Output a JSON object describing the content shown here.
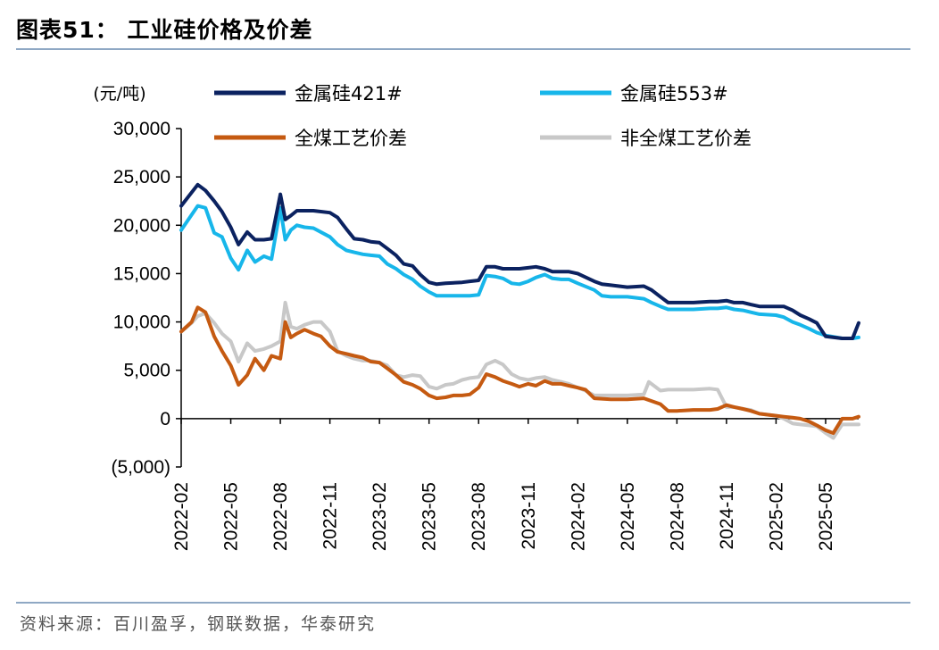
{
  "header": {
    "title": "图表51：  工业硅价格及价差"
  },
  "footer": {
    "source": "资料来源：百川盈孚，钢联数据，华泰研究"
  },
  "chart_data": {
    "type": "line",
    "ylabel": "(元/吨)",
    "ylim": [
      -5000,
      30000
    ],
    "yticks": [
      -5000,
      0,
      5000,
      10000,
      15000,
      20000,
      25000,
      30000
    ],
    "ytick_labels": [
      "(5,000)",
      "0",
      "5,000",
      "10,000",
      "15,000",
      "20,000",
      "25,000",
      "30,000"
    ],
    "x_range": [
      "2022-02",
      "2025-07"
    ],
    "xtick_labels": [
      "2022-02",
      "2022-05",
      "2022-08",
      "2022-11",
      "2023-02",
      "2023-05",
      "2023-08",
      "2023-11",
      "2024-02",
      "2024-05",
      "2024-08",
      "2024-11",
      "2025-02",
      "2025-05"
    ],
    "legend_position": "top",
    "series": [
      {
        "name": "金属硅421#",
        "color": "#0b2260",
        "x": [
          "2022-02",
          "2022-03",
          "2022-03-15",
          "2022-04",
          "2022-04-15",
          "2022-05",
          "2022-05-15",
          "2022-06",
          "2022-06-15",
          "2022-07",
          "2022-07-15",
          "2022-08",
          "2022-08-10",
          "2022-08-20",
          "2022-09",
          "2022-09-15",
          "2022-10",
          "2022-11",
          "2022-11-15",
          "2022-12",
          "2022-12-15",
          "2023-01",
          "2023-01-15",
          "2023-02",
          "2023-02-15",
          "2023-03",
          "2023-03-15",
          "2023-04",
          "2023-04-15",
          "2023-05",
          "2023-05-15",
          "2023-06",
          "2023-07",
          "2023-07-15",
          "2023-08",
          "2023-08-15",
          "2023-09",
          "2023-09-15",
          "2023-10",
          "2023-10-15",
          "2023-11",
          "2023-11-15",
          "2023-12",
          "2023-12-15",
          "2024-01",
          "2024-01-15",
          "2024-02",
          "2024-03",
          "2024-03-15",
          "2024-04",
          "2024-05",
          "2024-06",
          "2024-06-15",
          "2024-07",
          "2024-07-15",
          "2024-08",
          "2024-09",
          "2024-10",
          "2024-10-15",
          "2024-11",
          "2024-11-15",
          "2024-12",
          "2024-12-15",
          "2025-01",
          "2025-02",
          "2025-02-15",
          "2025-03",
          "2025-03-15",
          "2025-04",
          "2025-04-15",
          "2025-05",
          "2025-06",
          "2025-06-20",
          "2025-07"
        ],
        "values": [
          22000,
          24200,
          23600,
          22500,
          21400,
          19800,
          18000,
          19300,
          18500,
          18500,
          18600,
          23200,
          20600,
          21000,
          21500,
          21500,
          21500,
          21300,
          20800,
          19600,
          18600,
          18500,
          18300,
          18200,
          17600,
          16900,
          16000,
          15800,
          14900,
          14100,
          13900,
          14000,
          14100,
          14200,
          14300,
          15700,
          15700,
          15500,
          15500,
          15500,
          15600,
          15700,
          15500,
          15200,
          15200,
          15200,
          15000,
          14200,
          13900,
          13800,
          13600,
          13700,
          13300,
          12600,
          12000,
          12000,
          12000,
          12100,
          12100,
          12200,
          12000,
          12000,
          11800,
          11600,
          11600,
          11600,
          11200,
          10700,
          10300,
          9900,
          8500,
          8300,
          8300,
          9900
        ]
      },
      {
        "name": "金属硅553#",
        "color": "#17b6ea",
        "x": [
          "2022-02",
          "2022-03",
          "2022-03-15",
          "2022-04",
          "2022-04-15",
          "2022-05",
          "2022-05-15",
          "2022-06",
          "2022-06-15",
          "2022-07",
          "2022-07-15",
          "2022-08",
          "2022-08-10",
          "2022-08-20",
          "2022-09",
          "2022-09-15",
          "2022-10",
          "2022-11",
          "2022-11-15",
          "2022-12",
          "2022-12-15",
          "2023-01",
          "2023-01-15",
          "2023-02",
          "2023-02-15",
          "2023-03",
          "2023-03-15",
          "2023-04",
          "2023-04-15",
          "2023-05",
          "2023-05-15",
          "2023-06",
          "2023-07",
          "2023-07-15",
          "2023-08",
          "2023-08-15",
          "2023-09",
          "2023-09-15",
          "2023-10",
          "2023-10-15",
          "2023-11",
          "2023-11-15",
          "2023-12",
          "2023-12-15",
          "2024-01",
          "2024-01-15",
          "2024-02",
          "2024-03",
          "2024-03-15",
          "2024-04",
          "2024-05",
          "2024-06",
          "2024-06-15",
          "2024-07",
          "2024-07-15",
          "2024-08",
          "2024-09",
          "2024-10",
          "2024-10-15",
          "2024-11",
          "2024-11-15",
          "2024-12",
          "2024-12-15",
          "2025-01",
          "2025-02",
          "2025-02-15",
          "2025-03",
          "2025-03-15",
          "2025-04",
          "2025-04-15",
          "2025-05",
          "2025-06",
          "2025-06-20",
          "2025-07"
        ],
        "values": [
          19500,
          22000,
          21800,
          19200,
          18800,
          16600,
          15400,
          17400,
          16200,
          16800,
          16500,
          21800,
          18500,
          19500,
          20000,
          19800,
          19700,
          18800,
          18000,
          17400,
          17200,
          17000,
          16900,
          16800,
          16000,
          15500,
          14900,
          14400,
          13700,
          13100,
          12700,
          12700,
          12700,
          12700,
          12800,
          14800,
          14700,
          14500,
          14000,
          13900,
          14200,
          14600,
          14900,
          14500,
          14400,
          14400,
          14000,
          13300,
          12700,
          12600,
          12600,
          12400,
          12000,
          11600,
          11300,
          11300,
          11300,
          11400,
          11400,
          11500,
          11300,
          11200,
          11000,
          10800,
          10700,
          10500,
          10000,
          9700,
          9300,
          8900,
          8600,
          8300,
          8300,
          8400
        ]
      },
      {
        "name": "全煤工艺价差",
        "color": "#c55a11",
        "x": [
          "2022-02",
          "2022-02-20",
          "2022-03",
          "2022-03-15",
          "2022-04",
          "2022-04-15",
          "2022-05",
          "2022-05-15",
          "2022-06",
          "2022-06-15",
          "2022-07",
          "2022-07-15",
          "2022-08",
          "2022-08-10",
          "2022-08-20",
          "2022-09",
          "2022-09-15",
          "2022-10",
          "2022-10-15",
          "2022-11",
          "2022-11-15",
          "2022-12",
          "2022-12-15",
          "2023-01",
          "2023-01-15",
          "2023-02",
          "2023-02-15",
          "2023-03",
          "2023-03-15",
          "2023-04",
          "2023-04-15",
          "2023-05",
          "2023-05-15",
          "2023-06",
          "2023-06-15",
          "2023-07",
          "2023-07-15",
          "2023-08",
          "2023-08-15",
          "2023-09",
          "2023-09-15",
          "2023-10",
          "2023-10-15",
          "2023-11",
          "2023-11-15",
          "2023-12",
          "2023-12-15",
          "2024-01",
          "2024-01-15",
          "2024-02",
          "2024-02-15",
          "2024-03",
          "2024-04",
          "2024-05",
          "2024-06",
          "2024-07",
          "2024-07-15",
          "2024-08",
          "2024-09",
          "2024-10",
          "2024-10-15",
          "2024-11",
          "2024-11-15",
          "2024-12",
          "2024-12-15",
          "2025-01",
          "2025-02",
          "2025-02-15",
          "2025-03",
          "2025-03-15",
          "2025-04",
          "2025-04-15",
          "2025-05",
          "2025-05-15",
          "2025-06",
          "2025-06-20",
          "2025-07"
        ],
        "values": [
          9000,
          10000,
          11500,
          11000,
          8500,
          7000,
          5500,
          3500,
          4500,
          6200,
          5000,
          6500,
          6200,
          10000,
          8400,
          8800,
          9200,
          8800,
          8500,
          7500,
          6900,
          6700,
          6500,
          6300,
          5900,
          5800,
          5200,
          4500,
          3800,
          3500,
          3100,
          2400,
          2100,
          2200,
          2400,
          2400,
          2500,
          3200,
          4600,
          4300,
          3900,
          3600,
          3300,
          3600,
          3400,
          3900,
          3600,
          3600,
          3400,
          3200,
          3000,
          2100,
          2000,
          2000,
          2100,
          1500,
          800,
          800,
          900,
          900,
          1000,
          1400,
          1200,
          1000,
          800,
          500,
          300,
          200,
          100,
          0,
          -300,
          -700,
          -1200,
          -1500,
          0,
          0,
          200
        ]
      },
      {
        "name": "非全煤工艺价差",
        "color": "#c8c8c8",
        "x": [
          "2022-02",
          "2022-02-20",
          "2022-03",
          "2022-03-15",
          "2022-04",
          "2022-04-15",
          "2022-05",
          "2022-05-15",
          "2022-06",
          "2022-06-15",
          "2022-07",
          "2022-07-15",
          "2022-08",
          "2022-08-10",
          "2022-08-20",
          "2022-09",
          "2022-09-15",
          "2022-10",
          "2022-10-15",
          "2022-11",
          "2022-11-15",
          "2022-12",
          "2022-12-15",
          "2023-01",
          "2023-01-15",
          "2023-02",
          "2023-02-15",
          "2023-03",
          "2023-03-15",
          "2023-04",
          "2023-04-15",
          "2023-05",
          "2023-05-15",
          "2023-06",
          "2023-06-15",
          "2023-07",
          "2023-07-15",
          "2023-08",
          "2023-08-15",
          "2023-09",
          "2023-09-15",
          "2023-10",
          "2023-10-15",
          "2023-11",
          "2023-11-15",
          "2023-12",
          "2023-12-15",
          "2024-01",
          "2024-01-15",
          "2024-02",
          "2024-02-15",
          "2024-03",
          "2024-04",
          "2024-05",
          "2024-06",
          "2024-06-10",
          "2024-07",
          "2024-07-15",
          "2024-08",
          "2024-09",
          "2024-10",
          "2024-10-15",
          "2024-11",
          "2024-11-15",
          "2024-12",
          "2024-12-15",
          "2025-01",
          "2025-02",
          "2025-02-15",
          "2025-03",
          "2025-03-15",
          "2025-04",
          "2025-04-15",
          "2025-05",
          "2025-05-15",
          "2025-06",
          "2025-06-20",
          "2025-07"
        ],
        "values": [
          9000,
          9900,
          10600,
          10900,
          9900,
          8800,
          8000,
          5900,
          7800,
          7000,
          7200,
          7500,
          8000,
          12000,
          9500,
          9300,
          9700,
          10000,
          10000,
          9000,
          7000,
          6500,
          6200,
          6000,
          6000,
          5800,
          5500,
          4500,
          4300,
          4500,
          4400,
          3300,
          3100,
          3500,
          3600,
          4000,
          4200,
          4300,
          5600,
          6000,
          5600,
          4600,
          4200,
          4000,
          4200,
          4300,
          4000,
          3800,
          3600,
          3200,
          2900,
          2400,
          2400,
          2400,
          2500,
          3800,
          2900,
          3000,
          3000,
          3000,
          3100,
          3000,
          1200,
          1200,
          1000,
          900,
          500,
          300,
          0,
          -500,
          -600,
          -700,
          -800,
          -1500,
          -2000,
          -600,
          -600,
          -600
        ]
      }
    ]
  }
}
